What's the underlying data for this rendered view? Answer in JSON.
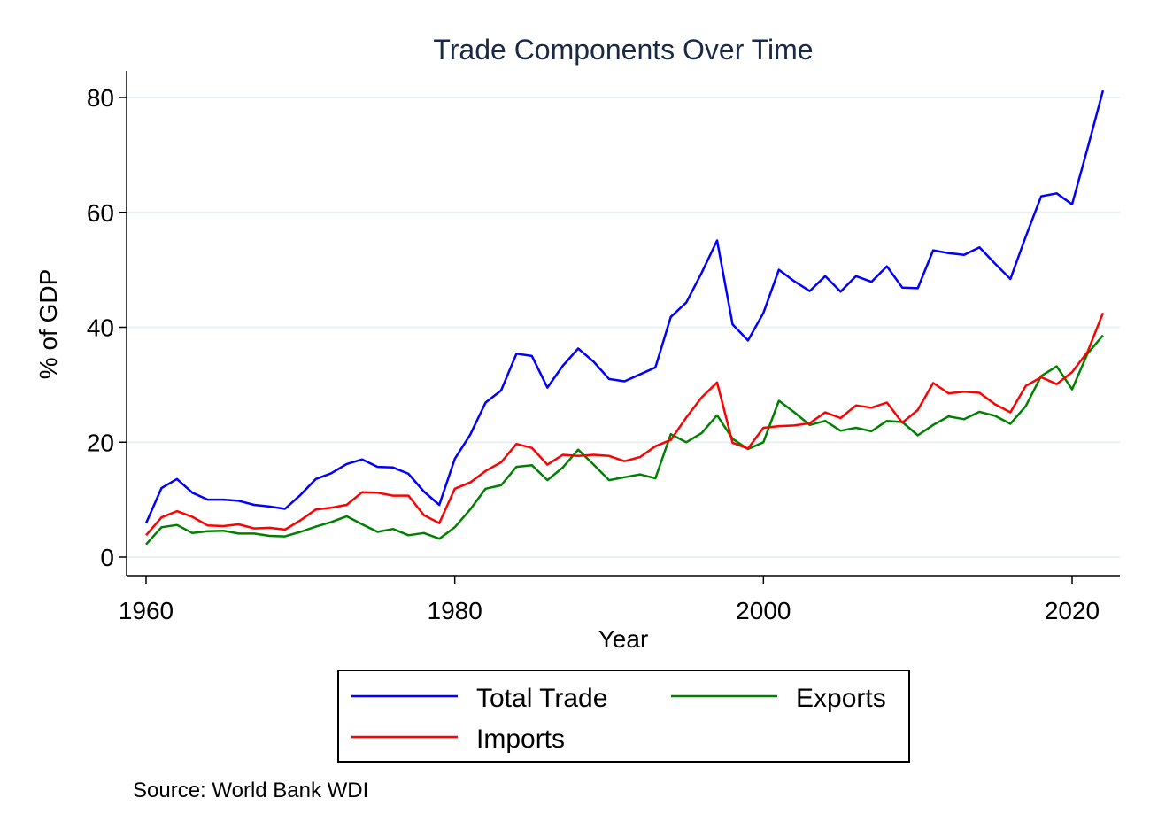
{
  "chart_data": {
    "type": "line",
    "title": "Trade Components Over Time",
    "xlabel": "Year",
    "ylabel": "% of GDP",
    "xlim": [
      1959,
      2023
    ],
    "ylim": [
      -3,
      84
    ],
    "xticks": [
      1960,
      1980,
      2000,
      2020
    ],
    "yticks": [
      0,
      20,
      40,
      60,
      80
    ],
    "grid": "horizontal",
    "legend_position": "bottom",
    "note": "Source: World Bank WDI",
    "x": [
      1960,
      1961,
      1962,
      1963,
      1964,
      1965,
      1966,
      1967,
      1968,
      1969,
      1970,
      1971,
      1972,
      1973,
      1974,
      1975,
      1976,
      1977,
      1978,
      1979,
      1980,
      1981,
      1982,
      1983,
      1984,
      1985,
      1986,
      1987,
      1988,
      1989,
      1990,
      1991,
      1992,
      1993,
      1994,
      1995,
      1996,
      1997,
      1998,
      1999,
      2000,
      2001,
      2002,
      2003,
      2004,
      2005,
      2006,
      2007,
      2008,
      2009,
      2010,
      2011,
      2012,
      2013,
      2014,
      2015,
      2016,
      2017,
      2018,
      2019,
      2020,
      2021,
      2022
    ],
    "series": [
      {
        "name": "Total Trade",
        "color": "#0000ff",
        "values": [
          5.9,
          12.0,
          13.6,
          11.2,
          10.0,
          10.0,
          9.8,
          9.1,
          8.8,
          8.4,
          10.8,
          13.6,
          14.6,
          16.2,
          17.0,
          15.7,
          15.6,
          14.5,
          11.4,
          9.1,
          17.1,
          21.3,
          26.9,
          29.0,
          35.4,
          35.0,
          29.5,
          33.3,
          36.3,
          34.0,
          31.0,
          30.6,
          31.8,
          33.0,
          41.8,
          44.3,
          49.5,
          55.1,
          40.5,
          37.7,
          42.5,
          50.0,
          48.0,
          46.3,
          48.9,
          46.2,
          48.9,
          47.9,
          50.6,
          46.9,
          46.8,
          53.4,
          52.9,
          52.6,
          53.9,
          51.1,
          48.4,
          55.8,
          62.8,
          63.3,
          61.4,
          71.1,
          81.2
        ]
      },
      {
        "name": "Exports",
        "color": "#008000",
        "values": [
          2.2,
          5.2,
          5.6,
          4.2,
          4.5,
          4.6,
          4.1,
          4.1,
          3.7,
          3.6,
          4.4,
          5.3,
          6.1,
          7.1,
          5.7,
          4.4,
          4.9,
          3.8,
          4.2,
          3.2,
          5.2,
          8.3,
          11.9,
          12.5,
          15.7,
          16.0,
          13.4,
          15.6,
          18.7,
          16.1,
          13.4,
          13.9,
          14.4,
          13.7,
          21.4,
          20.0,
          21.6,
          24.7,
          20.6,
          18.8,
          20.0,
          27.2,
          25.2,
          23.0,
          23.7,
          22.0,
          22.5,
          21.9,
          23.7,
          23.5,
          21.2,
          23.0,
          24.5,
          24.0,
          25.3,
          24.6,
          23.2,
          26.3,
          31.5,
          33.2,
          29.2,
          35.4,
          38.6
        ]
      },
      {
        "name": "Imports",
        "color": "#ff0000",
        "values": [
          3.8,
          6.9,
          8.0,
          7.0,
          5.5,
          5.4,
          5.7,
          5.0,
          5.1,
          4.8,
          6.4,
          8.3,
          8.6,
          9.1,
          11.3,
          11.2,
          10.7,
          10.7,
          7.3,
          5.9,
          11.9,
          13.0,
          15.0,
          16.5,
          19.7,
          19.0,
          16.1,
          17.8,
          17.6,
          17.8,
          17.6,
          16.7,
          17.4,
          19.3,
          20.4,
          24.3,
          27.8,
          30.4,
          19.9,
          18.9,
          22.5,
          22.8,
          22.9,
          23.3,
          25.2,
          24.2,
          26.4,
          26.0,
          26.9,
          23.4,
          25.6,
          30.3,
          28.5,
          28.8,
          28.6,
          26.6,
          25.2,
          29.8,
          31.3,
          30.1,
          32.2,
          35.7,
          42.5
        ]
      }
    ]
  }
}
